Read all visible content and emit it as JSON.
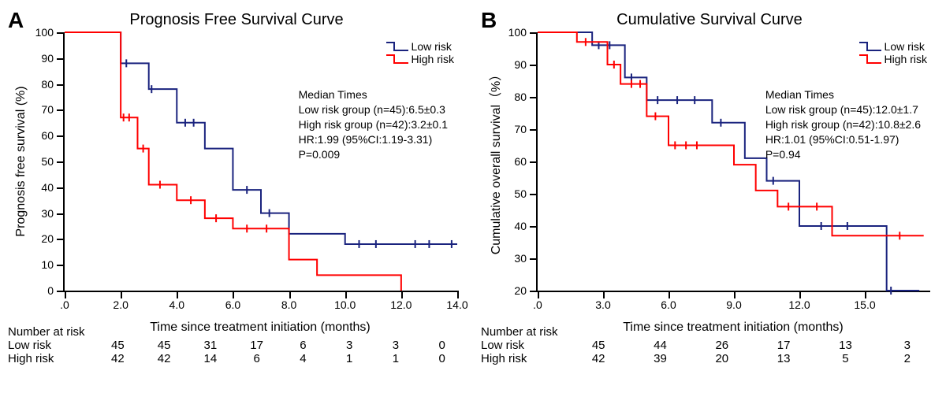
{
  "colors": {
    "low": "#1a237e",
    "high": "#ff0000",
    "axis": "#000000",
    "bg": "#ffffff",
    "text": "#000000"
  },
  "typography": {
    "title_fontsize": 20,
    "axis_label_fontsize": 16,
    "tick_fontsize": 14,
    "stats_fontsize": 14
  },
  "panelA": {
    "letter": "A",
    "title": "Prognosis Free Survival Curve",
    "ylabel": "Prognosis free survival (%)",
    "xlabel": "Time since treatment initiation (months)",
    "type": "kaplan-meier",
    "xlim": [
      0,
      14
    ],
    "ylim": [
      0,
      100
    ],
    "xticks": [
      0,
      2,
      4,
      6,
      8,
      10,
      12,
      14
    ],
    "xtick_labels": [
      ".0",
      "2.0",
      "4.0",
      "6.0",
      "8.0",
      "10.0",
      "12.0",
      "14.0"
    ],
    "yticks": [
      0,
      10,
      20,
      30,
      40,
      50,
      60,
      70,
      80,
      90,
      100
    ],
    "legend": {
      "low": "Low risk",
      "high": "High risk"
    },
    "stats": {
      "header": "Median Times",
      "low": "Low  risk group (n=45):6.5±0.3",
      "high": "High risk group (n=42):3.2±0.1",
      "hr": "HR:1.99 (95%CI:1.19-3.31)",
      "p": "P=0.009"
    },
    "line_width": 2,
    "series": {
      "low": {
        "color": "#1a237e",
        "points": [
          [
            0,
            100
          ],
          [
            2,
            100
          ],
          [
            2,
            88
          ],
          [
            3,
            88
          ],
          [
            3,
            78
          ],
          [
            4,
            78
          ],
          [
            4,
            65
          ],
          [
            5,
            65
          ],
          [
            5,
            55
          ],
          [
            6,
            55
          ],
          [
            6,
            39
          ],
          [
            7,
            39
          ],
          [
            7,
            30
          ],
          [
            8,
            30
          ],
          [
            8,
            22
          ],
          [
            10,
            22
          ],
          [
            10,
            18
          ],
          [
            14,
            18
          ]
        ],
        "censors": [
          [
            2.2,
            88
          ],
          [
            3.1,
            78
          ],
          [
            4.3,
            65
          ],
          [
            4.6,
            65
          ],
          [
            6.5,
            39
          ],
          [
            7.3,
            30
          ],
          [
            10.5,
            18
          ],
          [
            11.1,
            18
          ],
          [
            12.5,
            18
          ],
          [
            13.0,
            18
          ],
          [
            13.8,
            18
          ]
        ]
      },
      "high": {
        "color": "#ff0000",
        "points": [
          [
            0,
            100
          ],
          [
            2,
            100
          ],
          [
            2,
            67
          ],
          [
            2.6,
            67
          ],
          [
            2.6,
            55
          ],
          [
            3,
            55
          ],
          [
            3,
            41
          ],
          [
            4,
            41
          ],
          [
            4,
            35
          ],
          [
            5,
            35
          ],
          [
            5,
            28
          ],
          [
            6,
            28
          ],
          [
            6,
            24
          ],
          [
            8,
            24
          ],
          [
            8,
            12
          ],
          [
            9,
            12
          ],
          [
            9,
            6
          ],
          [
            12,
            6
          ],
          [
            12,
            0
          ]
        ],
        "censors": [
          [
            2.1,
            67
          ],
          [
            2.3,
            67
          ],
          [
            2.8,
            55
          ],
          [
            3.4,
            41
          ],
          [
            4.5,
            35
          ],
          [
            5.4,
            28
          ],
          [
            6.5,
            24
          ],
          [
            7.2,
            24
          ]
        ]
      }
    },
    "risk_table": {
      "header": "Number at risk",
      "low_label": "Low  risk",
      "high_label": "High risk",
      "low": [
        "45",
        "45",
        "31",
        "17",
        "6",
        "3",
        "3",
        "0"
      ],
      "high": [
        "42",
        "42",
        "14",
        "6",
        "4",
        "1",
        "1",
        "0"
      ]
    }
  },
  "panelB": {
    "letter": "B",
    "title": "Cumulative Survival Curve",
    "ylabel": "Cumulative overall survival（%）",
    "xlabel": "Time since treatment initiation (months)",
    "type": "kaplan-meier",
    "xlim": [
      0,
      18
    ],
    "ylim": [
      20,
      100
    ],
    "xticks": [
      0,
      3,
      6,
      9,
      12,
      15
    ],
    "xtick_labels": [
      ".0",
      "3.0",
      "6.0",
      "9.0",
      "12.0",
      "15.0"
    ],
    "yticks": [
      20,
      30,
      40,
      50,
      60,
      70,
      80,
      90,
      100
    ],
    "legend": {
      "low": "Low risk",
      "high": "High risk"
    },
    "stats": {
      "header": "Median Times",
      "low": "Low  risk group (n=45):12.0±1.7",
      "high": "High risk group (n=42):10.8±2.6",
      "hr": "HR:1.01 (95%CI:0.51-1.97)",
      "p": "P=0.94"
    },
    "line_width": 2,
    "series": {
      "low": {
        "color": "#1a237e",
        "points": [
          [
            0,
            100
          ],
          [
            2.5,
            100
          ],
          [
            2.5,
            96
          ],
          [
            4,
            96
          ],
          [
            4,
            86
          ],
          [
            5,
            86
          ],
          [
            5,
            79
          ],
          [
            8,
            79
          ],
          [
            8,
            72
          ],
          [
            9.5,
            72
          ],
          [
            9.5,
            61
          ],
          [
            10.5,
            61
          ],
          [
            10.5,
            54
          ],
          [
            12,
            54
          ],
          [
            12,
            40
          ],
          [
            16,
            40
          ],
          [
            16,
            20
          ],
          [
            17.5,
            20
          ]
        ],
        "censors": [
          [
            2.8,
            96
          ],
          [
            3.3,
            96
          ],
          [
            4.3,
            86
          ],
          [
            5.5,
            79
          ],
          [
            6.4,
            79
          ],
          [
            7.2,
            79
          ],
          [
            8.4,
            72
          ],
          [
            10.8,
            54
          ],
          [
            13.0,
            40
          ],
          [
            14.2,
            40
          ],
          [
            16.2,
            20
          ]
        ]
      },
      "high": {
        "color": "#ff0000",
        "points": [
          [
            0,
            100
          ],
          [
            1.8,
            100
          ],
          [
            1.8,
            97
          ],
          [
            3.2,
            97
          ],
          [
            3.2,
            90
          ],
          [
            3.8,
            90
          ],
          [
            3.8,
            84
          ],
          [
            5,
            84
          ],
          [
            5,
            74
          ],
          [
            6,
            74
          ],
          [
            6,
            65
          ],
          [
            9,
            65
          ],
          [
            9,
            59
          ],
          [
            10,
            59
          ],
          [
            10,
            51
          ],
          [
            11,
            51
          ],
          [
            11,
            46
          ],
          [
            13.5,
            46
          ],
          [
            13.5,
            37
          ],
          [
            17.7,
            37
          ]
        ],
        "censors": [
          [
            2.2,
            97
          ],
          [
            3.5,
            90
          ],
          [
            4.3,
            84
          ],
          [
            4.7,
            84
          ],
          [
            5.4,
            74
          ],
          [
            6.3,
            65
          ],
          [
            6.8,
            65
          ],
          [
            7.3,
            65
          ],
          [
            11.5,
            46
          ],
          [
            12.8,
            46
          ],
          [
            16.6,
            37
          ]
        ]
      }
    },
    "risk_table": {
      "header": "Number at risk",
      "low_label": "Low  risk",
      "high_label": "High risk",
      "low": [
        "45",
        "44",
        "26",
        "17",
        "13",
        "3"
      ],
      "high": [
        "42",
        "39",
        "20",
        "13",
        "5",
        "2"
      ]
    }
  }
}
